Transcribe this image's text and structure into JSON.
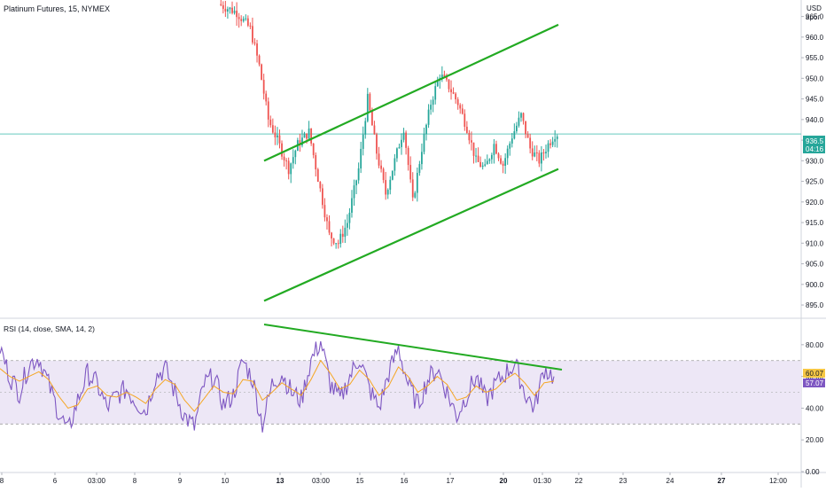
{
  "header": {
    "symbol_title": "Platinum Futures, 15, NYMEX",
    "currency": "USD",
    "currency_sub": "арог"
  },
  "price_panel": {
    "last_price_label": "936.5",
    "countdown_label": "04:16",
    "last_price_value": 936.5
  },
  "rsi_panel": {
    "title": "RSI (14, close, SMA, 14, 2)",
    "rsi_value_label": "60.07",
    "ma_value_label": "57.07"
  },
  "colors": {
    "up_candle": "#26a69a",
    "down_candle": "#ef5350",
    "trendline": "#22aa22",
    "rsi_line": "#7e57c2",
    "rsi_ma_line": "#f5a623",
    "rsi_band_fill": "#ede7f6",
    "price_line": "#66c9bf",
    "rsi_value_bg": "#f6c744",
    "ma_value_bg": "#7e57c2"
  },
  "chart_data": [
    {
      "type": "candlestick",
      "ylim": [
        892,
        969
      ],
      "y_ticks": [
        895,
        900,
        905,
        910,
        915,
        920,
        925,
        930,
        935,
        940,
        945,
        950,
        955,
        960,
        965
      ],
      "x_ticks": [
        "8",
        "6",
        "03:00",
        "8",
        "9",
        "10",
        "13",
        "03:00",
        "15",
        "16",
        "17",
        "20",
        "01:30",
        "22",
        "23",
        "24",
        "27",
        "12:00"
      ],
      "ohlc_keypoints": [
        [
          0,
          968
        ],
        [
          8,
          966
        ],
        [
          14,
          962
        ],
        [
          18,
          953
        ],
        [
          22,
          940
        ],
        [
          26,
          935
        ],
        [
          31,
          928
        ],
        [
          35,
          934
        ],
        [
          40,
          937
        ],
        [
          45,
          923
        ],
        [
          49,
          912
        ],
        [
          53,
          910
        ],
        [
          57,
          915
        ],
        [
          62,
          928
        ],
        [
          66,
          945
        ],
        [
          70,
          932
        ],
        [
          74,
          922
        ],
        [
          78,
          930
        ],
        [
          82,
          938
        ],
        [
          86,
          920
        ],
        [
          90,
          933
        ],
        [
          94,
          944
        ],
        [
          98,
          951
        ],
        [
          102,
          948
        ],
        [
          106,
          944
        ],
        [
          110,
          938
        ],
        [
          114,
          930
        ],
        [
          118,
          928
        ],
        [
          122,
          934
        ],
        [
          126,
          929
        ],
        [
          130,
          936
        ],
        [
          134,
          941
        ],
        [
          138,
          933
        ],
        [
          142,
          930
        ],
        [
          146,
          934
        ],
        [
          149,
          936.5
        ]
      ],
      "trendlines": [
        {
          "points": [
            [
              100,
              930
            ],
            [
              120,
              963
            ]
          ]
        },
        {
          "points": [
            [
              100,
              896
            ],
            [
              120,
              928
            ]
          ]
        }
      ]
    },
    {
      "type": "line",
      "series": [
        {
          "name": "RSI",
          "values": [
            78,
            60,
            50,
            68,
            72,
            55,
            38,
            25,
            45,
            62,
            55,
            40,
            48,
            52,
            44,
            38,
            60,
            65,
            50,
            35,
            28,
            55,
            60,
            42,
            48,
            70,
            58,
            30,
            55,
            62,
            50,
            45,
            70,
            82,
            55,
            45,
            60,
            72,
            52,
            40,
            62,
            78,
            55,
            42,
            58,
            65,
            50,
            35,
            48,
            60,
            45,
            55,
            62,
            68,
            50,
            40,
            65,
            60
          ]
        },
        {
          "name": "MA",
          "values": [
            65,
            60,
            57,
            60,
            63,
            58,
            48,
            40,
            42,
            52,
            54,
            48,
            47,
            50,
            47,
            43,
            52,
            58,
            55,
            45,
            38,
            46,
            54,
            50,
            49,
            58,
            57,
            45,
            50,
            56,
            52,
            48,
            58,
            70,
            62,
            52,
            55,
            64,
            58,
            48,
            54,
            66,
            60,
            50,
            54,
            60,
            55,
            45,
            47,
            54,
            50,
            52,
            58,
            62,
            56,
            48,
            56,
            57
          ]
        }
      ],
      "ylim": [
        0,
        95
      ],
      "y_ticks": [
        0,
        20,
        40,
        60,
        80
      ],
      "y_tick_labels": [
        "0.00",
        "20.00",
        "40.00",
        "60.00",
        "80.00"
      ],
      "bands": [
        30,
        70
      ],
      "trendlines": [
        {
          "points": [
            [
              0,
              90
            ],
            [
              1,
              70
            ]
          ]
        }
      ]
    }
  ]
}
